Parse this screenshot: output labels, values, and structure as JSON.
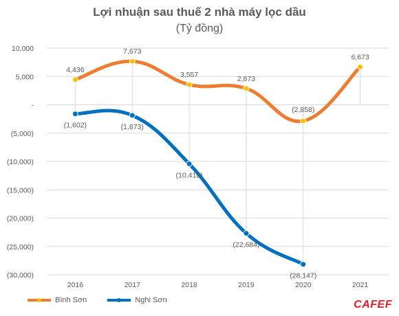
{
  "chart_data": {
    "type": "line",
    "title": "Lợi nhuận sau thuế 2 nhà máy lọc dầu",
    "subtitle": "(Tỷ đồng)",
    "categories": [
      "2016",
      "2017",
      "2018",
      "2019",
      "2020",
      "2021"
    ],
    "y_ticks": [
      "10,000",
      "5,000",
      "-",
      "(5,000)",
      "(10,000)",
      "(15,000)",
      "(20,000)",
      "(25,000)",
      "(30,000)"
    ],
    "ylim": [
      -30000,
      10000
    ],
    "grid": true,
    "legend_position": "bottom-left",
    "series": [
      {
        "name": "Bình Sơn",
        "color": "#ED7D31",
        "values": [
          4436,
          7673,
          3557,
          2873,
          -2858,
          6673
        ],
        "labels": [
          "4,436",
          "7,673",
          "3,557",
          "2,873",
          "(2,858)",
          "6,673"
        ]
      },
      {
        "name": "Nghi Sơn",
        "color": "#0070C0",
        "values": [
          -1602,
          -1873,
          -10418,
          -22684,
          -28147,
          null
        ],
        "labels": [
          "(1,602)",
          "(1,873)",
          "(10,418)",
          "(22,684)",
          "(28,147)",
          null
        ]
      }
    ],
    "marker_color": "#FFC000"
  },
  "logo": {
    "text": "CAFEF"
  }
}
